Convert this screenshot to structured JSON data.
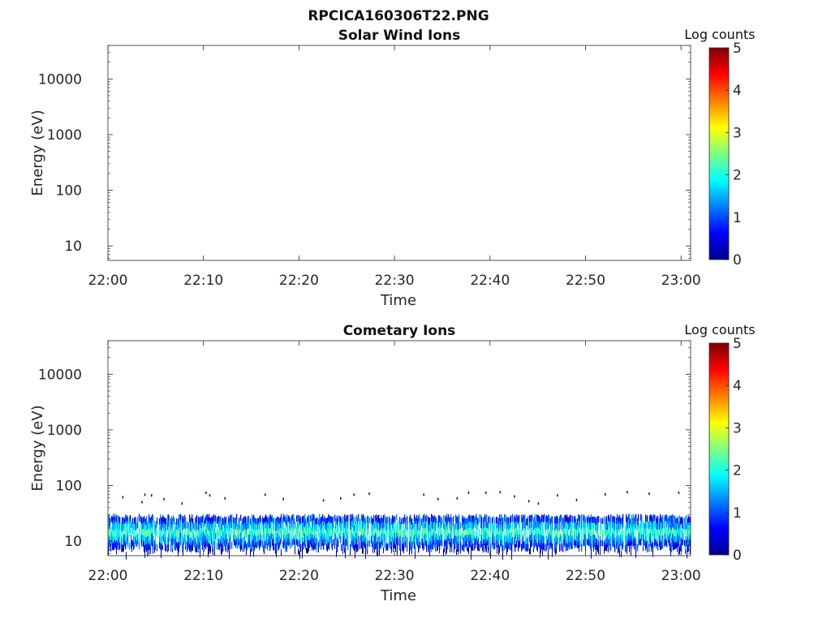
{
  "figure_title": "RPCICA160306T22.PNG",
  "colormap": [
    "#00008f",
    "#0000ff",
    "#007fff",
    "#00ffff",
    "#7fff7f",
    "#ffff00",
    "#ff7f00",
    "#ff0000",
    "#7f0000"
  ],
  "chart_data": [
    {
      "type": "heatmap",
      "title": "Solar Wind Ions",
      "xlabel": "Time",
      "ylabel": "Energy (eV)",
      "x_ticks": [
        "22:00",
        "22:10",
        "22:20",
        "22:30",
        "22:40",
        "22:50",
        "23:00"
      ],
      "y_ticks": [
        "10",
        "100",
        "1000",
        "10000"
      ],
      "x_range_minutes": [
        0,
        61
      ],
      "y_scale": "log",
      "y_range_eV": [
        5.5,
        40000
      ],
      "colorbar": {
        "label": "Log counts",
        "ticks": [
          "0",
          "1",
          "2",
          "3",
          "4",
          "5"
        ],
        "range": [
          0,
          5
        ]
      },
      "grid": false,
      "bands": []
    },
    {
      "type": "heatmap",
      "title": "Cometary Ions",
      "xlabel": "Time",
      "ylabel": "Energy (eV)",
      "x_ticks": [
        "22:00",
        "22:10",
        "22:20",
        "22:30",
        "22:40",
        "22:50",
        "23:00"
      ],
      "y_ticks": [
        "10",
        "100",
        "1000",
        "10000"
      ],
      "x_range_minutes": [
        0,
        61
      ],
      "y_scale": "log",
      "y_range_eV": [
        5.5,
        40000
      ],
      "colorbar": {
        "label": "Log counts",
        "ticks": [
          "0",
          "1",
          "2",
          "3",
          "4",
          "5"
        ],
        "range": [
          0,
          5
        ]
      },
      "grid": false,
      "bands": [
        {
          "t_start_min": 0,
          "t_end_min": 61,
          "e_low_eV": 8,
          "e_high_eV": 28,
          "core_log_counts": 2.1,
          "edge_log_counts": 0.9
        }
      ],
      "sparse_points": [
        {
          "t_min": 1.5,
          "e_eV": 65
        },
        {
          "t_min": 3.5,
          "e_eV": 53
        },
        {
          "t_min": 3.8,
          "e_eV": 72
        },
        {
          "t_min": 4.5,
          "e_eV": 70
        },
        {
          "t_min": 5.8,
          "e_eV": 60
        },
        {
          "t_min": 7.7,
          "e_eV": 50
        },
        {
          "t_min": 10.2,
          "e_eV": 78
        },
        {
          "t_min": 10.6,
          "e_eV": 70
        },
        {
          "t_min": 12.2,
          "e_eV": 62
        },
        {
          "t_min": 16.4,
          "e_eV": 72
        },
        {
          "t_min": 18.3,
          "e_eV": 60
        },
        {
          "t_min": 22.5,
          "e_eV": 57
        },
        {
          "t_min": 24.3,
          "e_eV": 62
        },
        {
          "t_min": 25.7,
          "e_eV": 72
        },
        {
          "t_min": 27.3,
          "e_eV": 75
        },
        {
          "t_min": 33,
          "e_eV": 72
        },
        {
          "t_min": 34.5,
          "e_eV": 60
        },
        {
          "t_min": 36.5,
          "e_eV": 62
        },
        {
          "t_min": 37.7,
          "e_eV": 78
        },
        {
          "t_min": 39.5,
          "e_eV": 78
        },
        {
          "t_min": 41,
          "e_eV": 80
        },
        {
          "t_min": 42.5,
          "e_eV": 67
        },
        {
          "t_min": 44,
          "e_eV": 55
        },
        {
          "t_min": 45,
          "e_eV": 50
        },
        {
          "t_min": 47,
          "e_eV": 70
        },
        {
          "t_min": 49,
          "e_eV": 58
        },
        {
          "t_min": 52,
          "e_eV": 73
        },
        {
          "t_min": 54.3,
          "e_eV": 80
        },
        {
          "t_min": 56.6,
          "e_eV": 75
        },
        {
          "t_min": 59.7,
          "e_eV": 78
        }
      ]
    }
  ]
}
